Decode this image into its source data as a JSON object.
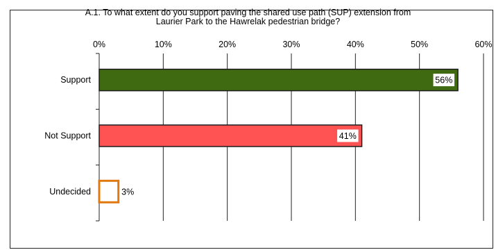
{
  "chart_data": {
    "type": "bar",
    "orientation": "horizontal",
    "title_lines": [
      "A.1. To what extent do you support paving the  shared use path (SUP) extension from",
      "Laurier Park to the Hawrelak pedestrian bridge?"
    ],
    "categories": [
      "Support",
      "Not Support",
      "Undecided"
    ],
    "values": [
      56,
      41,
      3
    ],
    "value_labels": [
      "56%",
      "41%",
      "3%"
    ],
    "xlim": [
      0,
      60
    ],
    "x_ticks": [
      0,
      10,
      20,
      30,
      40,
      50,
      60
    ],
    "x_tick_labels": [
      "0%",
      "10%",
      "20%",
      "30%",
      "40%",
      "50%",
      "60%"
    ],
    "x_axis_position": "top",
    "grid": true,
    "legend": "none",
    "colors": {
      "bar_fills": [
        "#3f6a12",
        "#ff5252",
        "#ffffff"
      ],
      "bar_strokes": [
        "#1c1c1c",
        "#1c1c1c",
        "#e07a10"
      ]
    }
  }
}
